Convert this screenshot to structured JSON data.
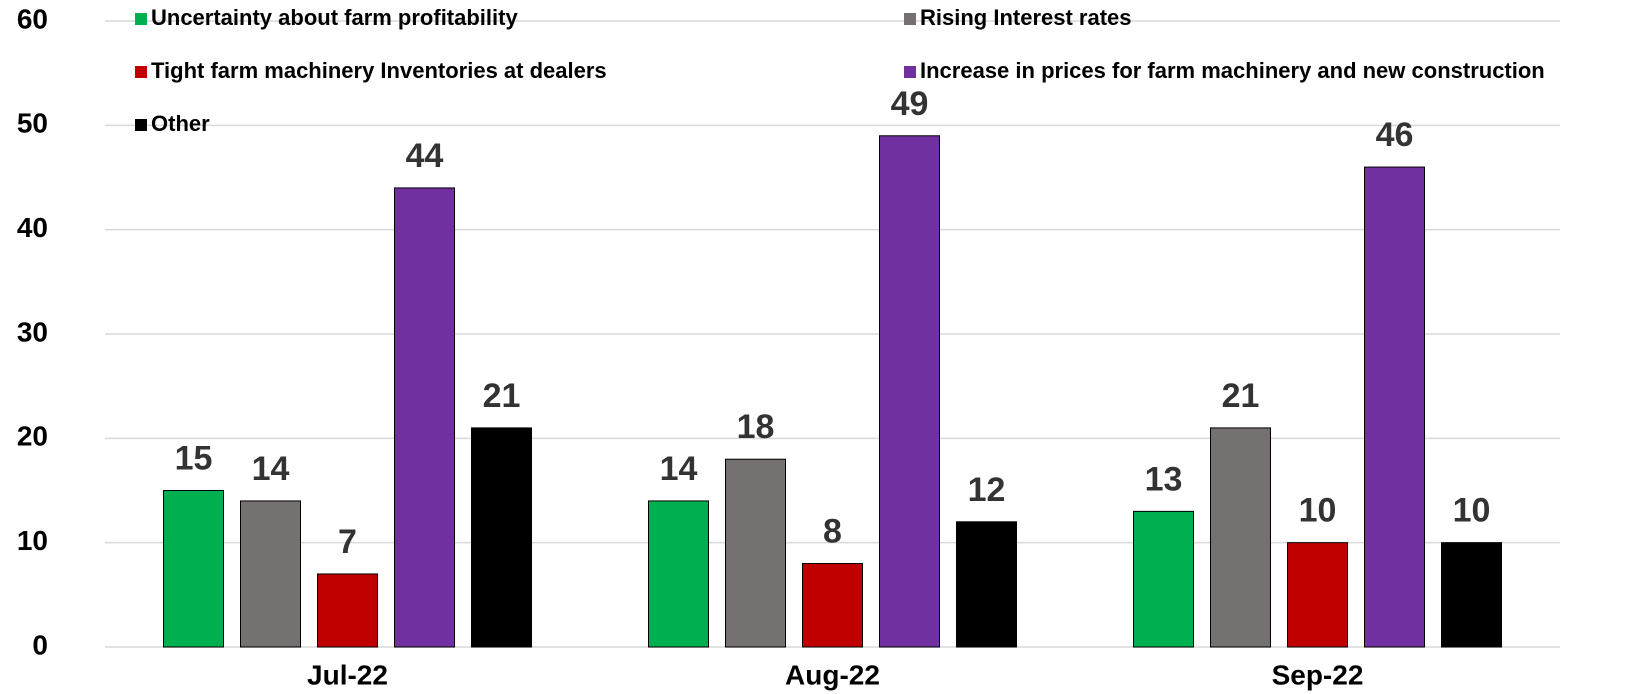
{
  "chart_data": {
    "type": "bar",
    "categories": [
      "Jul-22",
      "Aug-22",
      "Sep-22"
    ],
    "series": [
      {
        "name": "Uncertainty about farm profitability",
        "color": "#00b050",
        "values": [
          15,
          14,
          13
        ]
      },
      {
        "name": "Rising Interest rates",
        "color": "#767171",
        "values": [
          14,
          18,
          21
        ]
      },
      {
        "name": "Tight farm machinery Inventories at dealers",
        "color": "#c00000",
        "values": [
          7,
          8,
          10
        ]
      },
      {
        "name": "Increase in prices for farm machinery and new construction",
        "color": "#7030a0",
        "values": [
          44,
          49,
          46
        ]
      },
      {
        "name": "Other",
        "color": "#000000",
        "values": [
          21,
          12,
          10
        ]
      }
    ],
    "ylim": [
      0,
      60
    ],
    "yticks": [
      0,
      10,
      20,
      30,
      40,
      50,
      60
    ],
    "grid": true
  }
}
